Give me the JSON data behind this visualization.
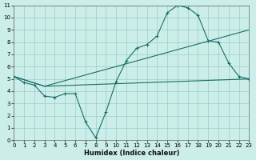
{
  "xlabel": "Humidex (Indice chaleur)",
  "bg_color": "#cceee8",
  "line_color": "#1a6b6b",
  "grid_color": "#99cccc",
  "curve1_x": [
    0,
    1,
    2,
    3,
    4,
    5,
    6,
    7,
    8,
    9,
    10,
    11,
    12,
    13,
    14,
    15,
    16,
    17,
    18,
    19,
    20,
    21,
    22,
    23
  ],
  "curve1_y": [
    5.2,
    4.7,
    4.5,
    3.6,
    3.5,
    3.8,
    3.8,
    1.5,
    0.2,
    2.3,
    4.8,
    6.5,
    7.5,
    7.8,
    8.5,
    10.4,
    11.0,
    10.8,
    10.2,
    8.1,
    8.0,
    6.3,
    5.2,
    5.0
  ],
  "line2_x": [
    0,
    3,
    23
  ],
  "line2_y": [
    5.2,
    4.4,
    5.0
  ],
  "line3_x": [
    0,
    3,
    23
  ],
  "line3_y": [
    5.2,
    4.4,
    9.0
  ],
  "xlim": [
    0,
    23
  ],
  "ylim": [
    0,
    11
  ],
  "yticks": [
    0,
    1,
    2,
    3,
    4,
    5,
    6,
    7,
    8,
    9,
    10,
    11
  ],
  "xticks": [
    0,
    1,
    2,
    3,
    4,
    5,
    6,
    7,
    8,
    9,
    10,
    11,
    12,
    13,
    14,
    15,
    16,
    17,
    18,
    19,
    20,
    21,
    22,
    23
  ],
  "tick_fontsize": 5,
  "xlabel_fontsize": 6
}
